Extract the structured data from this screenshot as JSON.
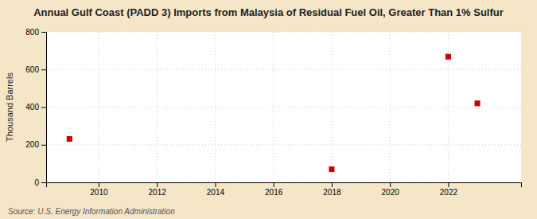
{
  "chart_data": {
    "type": "scatter",
    "title": "Annual Gulf Coast (PADD 3) Imports from Malaysia of Residual Fuel Oil, Greater Than 1% Sulfur",
    "ylabel": "Thousand Barrels",
    "source": "Source: U.S. Energy Information Administration",
    "x": [
      2009,
      2018,
      2022,
      2023
    ],
    "values": [
      231,
      70,
      668,
      420
    ],
    "color": "#cc0000",
    "marker": "square",
    "xlim": [
      2008.2,
      2024.5
    ],
    "xticks": [
      2010,
      2012,
      2014,
      2016,
      2018,
      2020,
      2022
    ],
    "ylim": [
      0,
      800
    ],
    "yticks": [
      0,
      200,
      400,
      600,
      800
    ],
    "grid": true
  }
}
